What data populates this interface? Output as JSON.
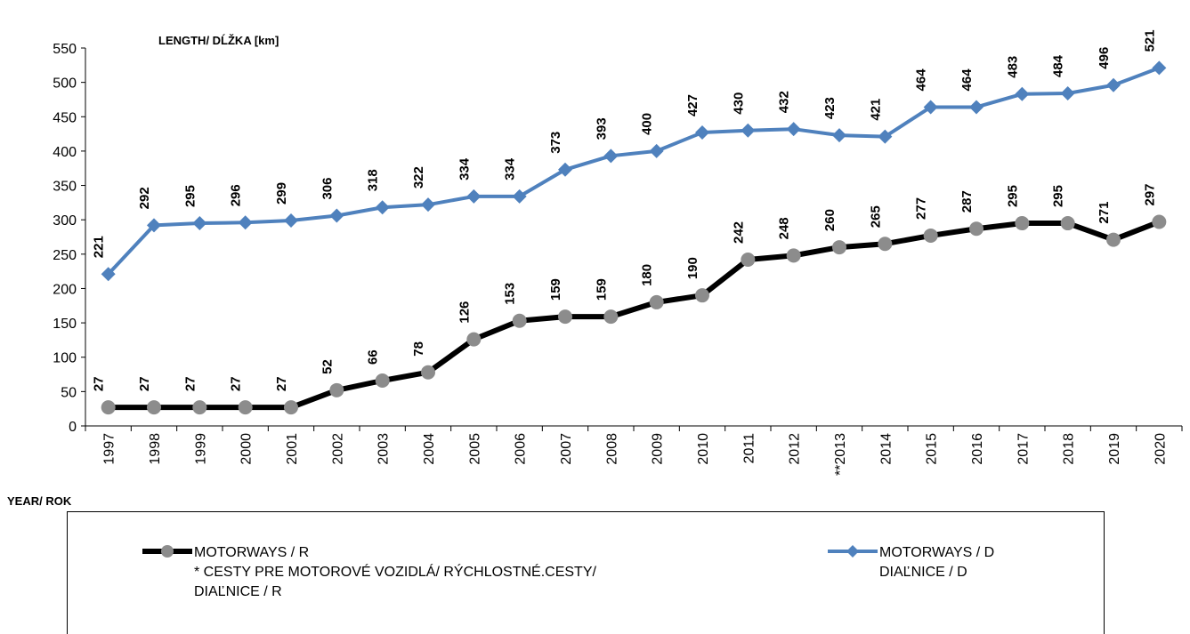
{
  "chart_data": {
    "type": "line",
    "y_label": "LENGTH/ DĹŽKA [km]",
    "x_label": "YEAR/ ROK",
    "categories": [
      "1997",
      "1998",
      "1999",
      "2000",
      "2001",
      "2002",
      "2003",
      "2004",
      "2005",
      "2006",
      "2007",
      "2008",
      "2009",
      "2010",
      "2011",
      "2012",
      "**2013",
      "2014",
      "2015",
      "2016",
      "2017",
      "2018",
      "2019",
      "2020"
    ],
    "series": [
      {
        "name": "MOTORWAYS / R",
        "note": [
          "*  CESTY  PRE MOTOROVÉ VOZIDLÁ/  RÝCHLOSTNÉ.CESTY/",
          "DIAĽNICE / R"
        ],
        "color": "#000000",
        "marker_color": "#8c8c8c",
        "marker": "circle",
        "values": [
          27,
          27,
          27,
          27,
          27,
          52,
          66,
          78,
          126,
          153,
          159,
          159,
          180,
          190,
          242,
          248,
          260,
          265,
          277,
          287,
          295,
          295,
          271,
          297
        ]
      },
      {
        "name": "MOTORWAYS / D",
        "note": [
          "DIAĽNICE / D"
        ],
        "color": "#4f81bd",
        "marker_color": "#4f81bd",
        "marker": "diamond",
        "values": [
          221,
          292,
          295,
          296,
          299,
          306,
          318,
          322,
          334,
          334,
          373,
          393,
          400,
          427,
          430,
          432,
          423,
          421,
          464,
          464,
          483,
          484,
          496,
          521
        ]
      }
    ],
    "ylim": [
      0,
      550
    ],
    "yticks": [
      0,
      50,
      100,
      150,
      200,
      250,
      300,
      350,
      400,
      450,
      500,
      550
    ],
    "grid": false
  }
}
